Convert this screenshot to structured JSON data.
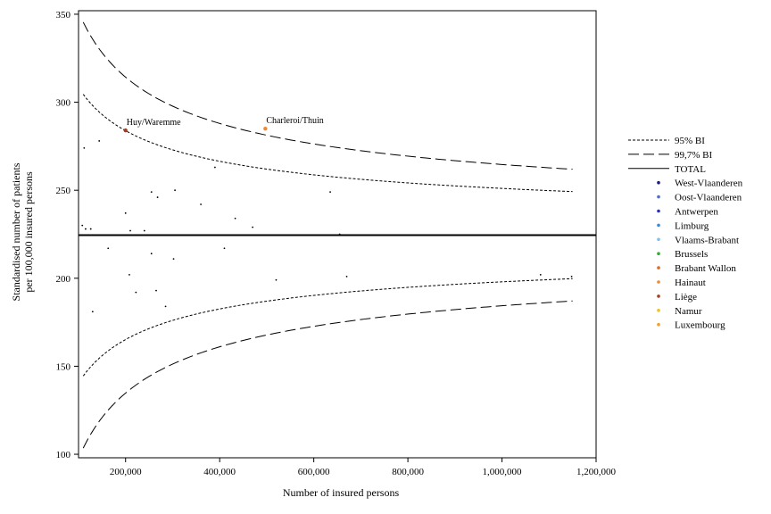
{
  "chart_data": {
    "type": "scatter",
    "title": "",
    "xlabel": "Number of insured persons",
    "ylabel_lines": [
      "Standardised number of patients",
      "per 100,000 insured persons"
    ],
    "xlim": [
      100000,
      1200000
    ],
    "ylim": [
      98,
      352
    ],
    "x_ticks": [
      200000,
      400000,
      600000,
      800000,
      1000000,
      1200000
    ],
    "x_tick_labels": [
      "200,000",
      "400,000",
      "600,000",
      "800,000",
      "1,000,000",
      "1,200,000"
    ],
    "y_ticks": [
      100,
      150,
      200,
      250,
      300,
      350
    ],
    "y_tick_labels": [
      "100",
      "150",
      "200",
      "250",
      "300",
      "350"
    ],
    "grid": false,
    "legend_position": "right",
    "total_rate": 224.5,
    "funnel": {
      "x_range": [
        110000,
        1150000
      ],
      "ci95_label": "95% BI",
      "ci997_label": "99,7% BI",
      "total_label": "TOTAL",
      "ci95_offset_at_110k": 80,
      "ci997_offset_at_110k": 121
    },
    "regions": [
      {
        "name": "West-Vlaanderen",
        "color": "#1a1a8c"
      },
      {
        "name": "Oost-Vlaanderen",
        "color": "#4a6fd8"
      },
      {
        "name": "Antwerpen",
        "color": "#1f2fd0"
      },
      {
        "name": "Limburg",
        "color": "#2f8fe0"
      },
      {
        "name": "Vlaams-Brabant",
        "color": "#7fc0f0"
      },
      {
        "name": "Brussels",
        "color": "#30b030"
      },
      {
        "name": "Brabant Wallon",
        "color": "#e06a20"
      },
      {
        "name": "Hainaut",
        "color": "#f08a30"
      },
      {
        "name": "Liège",
        "color": "#a04020"
      },
      {
        "name": "Namur",
        "color": "#f0c020"
      },
      {
        "name": "Luxembourg",
        "color": "#f0a030"
      }
    ],
    "points": [
      {
        "x": 200000,
        "y": 284,
        "color": "#a04020",
        "label": "Huy/Waremme"
      },
      {
        "x": 497000,
        "y": 285,
        "color": "#f08a30",
        "label": "Charleroi/Thuin"
      },
      {
        "x": 112000,
        "y": 274
      },
      {
        "x": 144000,
        "y": 278
      },
      {
        "x": 390000,
        "y": 263
      },
      {
        "x": 255000,
        "y": 249
      },
      {
        "x": 305000,
        "y": 250
      },
      {
        "x": 268000,
        "y": 246
      },
      {
        "x": 360000,
        "y": 242
      },
      {
        "x": 635000,
        "y": 249
      },
      {
        "x": 200000,
        "y": 237
      },
      {
        "x": 433000,
        "y": 234
      },
      {
        "x": 108000,
        "y": 230
      },
      {
        "x": 115000,
        "y": 228
      },
      {
        "x": 126000,
        "y": 228
      },
      {
        "x": 210000,
        "y": 227
      },
      {
        "x": 240000,
        "y": 227
      },
      {
        "x": 470000,
        "y": 229
      },
      {
        "x": 655000,
        "y": 225
      },
      {
        "x": 163000,
        "y": 217
      },
      {
        "x": 410000,
        "y": 217
      },
      {
        "x": 255000,
        "y": 214
      },
      {
        "x": 302000,
        "y": 211
      },
      {
        "x": 208000,
        "y": 202
      },
      {
        "x": 670000,
        "y": 201
      },
      {
        "x": 1082000,
        "y": 202
      },
      {
        "x": 1148000,
        "y": 201
      },
      {
        "x": 520000,
        "y": 199
      },
      {
        "x": 222000,
        "y": 192
      },
      {
        "x": 265000,
        "y": 193
      },
      {
        "x": 285000,
        "y": 184
      },
      {
        "x": 130000,
        "y": 181
      }
    ]
  }
}
